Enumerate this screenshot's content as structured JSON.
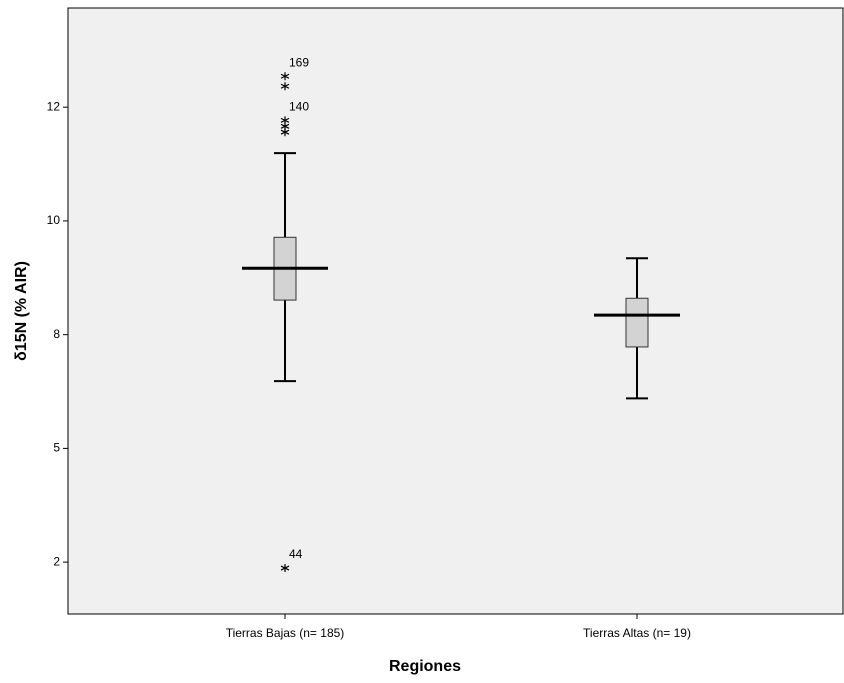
{
  "chart_data": {
    "type": "box",
    "x_label": "Regiones",
    "y_label": "δ15N (% AIR)",
    "categories": [
      "Tierras Bajas (n= 185)",
      "Tierras Altas (n= 19)"
    ],
    "boxes": [
      {
        "whisker_low": 6.48,
        "q1": 8.26,
        "median": 8.96,
        "q3": 9.64,
        "whisker_high": 11.49
      },
      {
        "whisker_low": 6.1,
        "q1": 7.23,
        "median": 7.93,
        "q3": 8.3,
        "whisker_high": 9.18
      }
    ],
    "outliers": [
      [
        13.18,
        12.96,
        12.21,
        12.08,
        11.95,
        2.37
      ],
      []
    ],
    "outlier_labels": [
      [
        "169",
        null,
        "140",
        null,
        null,
        "44"
      ],
      []
    ],
    "box_color": "#d3d3d3",
    "background": "#f0f0f0",
    "ylim": [
      1.36,
      14.68
    ],
    "yticks": [
      {
        "value": 2.5,
        "label": "2"
      },
      {
        "value": 5,
        "label": "5"
      },
      {
        "value": 7.5,
        "label": "8"
      },
      {
        "value": 10,
        "label": "10"
      },
      {
        "value": 12.5,
        "label": "12"
      }
    ]
  }
}
